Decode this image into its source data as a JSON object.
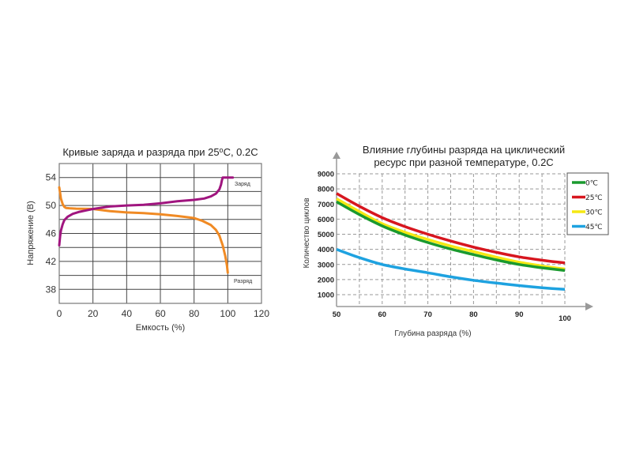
{
  "chart_data": [
    {
      "type": "line",
      "title": "Кривые заряда и разряда при 25",
      "title_sup": "o",
      "title_tail": "C, 0.2C",
      "xlabel": "Емкость (%)",
      "ylabel": "Напряжение (В)",
      "xlim": [
        0,
        120
      ],
      "ylim": [
        36,
        56
      ],
      "xticks": [
        0,
        20,
        40,
        60,
        80,
        100,
        120
      ],
      "yticks": [
        38,
        42,
        46,
        50,
        54
      ],
      "xtick_labels": [
        "0",
        "20",
        "40",
        "60",
        "80",
        "100",
        "120"
      ],
      "ytick_labels": [
        "38",
        "42",
        "46",
        "50",
        "54"
      ],
      "grid": true,
      "series": [
        {
          "name": "Заряд",
          "color": "#a0157f",
          "x": [
            0,
            0.5,
            1,
            2,
            3,
            5,
            8,
            12,
            16,
            20,
            30,
            40,
            50,
            60,
            70,
            80,
            86,
            90,
            93,
            95,
            96,
            96.5,
            97,
            100,
            103
          ],
          "y": [
            44.3,
            45.6,
            46.4,
            47.3,
            47.9,
            48.4,
            48.8,
            49.1,
            49.3,
            49.5,
            49.85,
            50.0,
            50.1,
            50.3,
            50.6,
            50.8,
            51.0,
            51.3,
            51.7,
            52.3,
            53.0,
            53.6,
            54.0,
            54.0,
            54.0
          ]
        },
        {
          "name": "Разряд",
          "color": "#f08a24",
          "x": [
            0,
            0.5,
            1,
            2,
            3,
            4,
            6,
            10,
            20,
            30,
            40,
            50,
            60,
            70,
            80,
            85,
            90,
            93,
            95,
            97,
            98.5,
            99.5,
            100
          ],
          "y": [
            52.6,
            51.8,
            51.0,
            50.2,
            49.8,
            49.65,
            49.6,
            49.55,
            49.5,
            49.2,
            49.0,
            48.9,
            48.75,
            48.5,
            48.2,
            47.8,
            47.2,
            46.5,
            45.7,
            44.3,
            42.8,
            41.4,
            40.4
          ]
        }
      ],
      "annotations": [
        "Заряд",
        "Разряд"
      ]
    },
    {
      "type": "line",
      "title_line1": "Влияние глубины разряда на циклический",
      "title_line2": "ресурс при разной температуре, 0.2C",
      "xlabel": "Глубина разряда  (%)",
      "ylabel": "Количество циклов",
      "xlim": [
        50,
        100
      ],
      "ylim": [
        200,
        9000
      ],
      "xticks": [
        50,
        60,
        70,
        80,
        90,
        100
      ],
      "xtick_labels": [
        "50",
        "60",
        "70",
        "80",
        "90",
        "100"
      ],
      "yticks": [
        1000,
        2000,
        3000,
        4000,
        5000,
        6000,
        7000,
        8000,
        9000
      ],
      "ytick_labels": [
        "1000",
        "2000",
        "3000",
        "4000",
        "5000",
        "6000",
        "7000",
        "8000",
        "9000"
      ],
      "grid": "dashed",
      "legend_position": "top-right",
      "x": [
        50,
        55,
        60,
        65,
        70,
        75,
        80,
        85,
        90,
        95,
        100
      ],
      "series": [
        {
          "name": "0℃",
          "color": "#1a9a2e",
          "values": [
            7150,
            6300,
            5550,
            4950,
            4450,
            4020,
            3650,
            3300,
            3000,
            2780,
            2600
          ]
        },
        {
          "name": "25℃",
          "color": "#d7161f",
          "values": [
            7700,
            6850,
            6100,
            5500,
            5000,
            4550,
            4150,
            3800,
            3500,
            3280,
            3100
          ]
        },
        {
          "name": "30℃",
          "color": "#f5e813",
          "values": [
            7350,
            6500,
            5700,
            5130,
            4650,
            4220,
            3850,
            3480,
            3150,
            2900,
            2700
          ]
        },
        {
          "name": "45℃",
          "color": "#1ea2e0",
          "values": [
            4000,
            3450,
            3000,
            2700,
            2450,
            2180,
            1950,
            1770,
            1600,
            1460,
            1350
          ]
        }
      ]
    }
  ]
}
